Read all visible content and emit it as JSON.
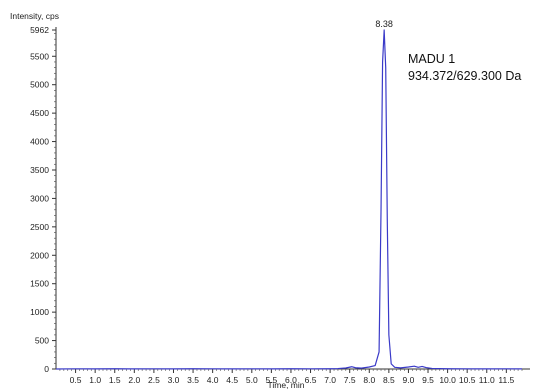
{
  "chart_data": {
    "type": "line",
    "ylabel": "Intensity, cps",
    "xlabel": "Time, min",
    "xlim": [
      0,
      11.9
    ],
    "ylim": [
      0,
      5962
    ],
    "x_ticks": [
      0.5,
      1.0,
      1.5,
      2.0,
      2.5,
      3.0,
      3.5,
      4.0,
      4.5,
      5.0,
      5.5,
      6.0,
      6.5,
      7.0,
      7.5,
      8.0,
      8.5,
      9.0,
      9.5,
      10.0,
      10.5,
      11.0,
      11.5
    ],
    "x_tick_labels": [
      "0.5",
      "1.0",
      "1.5",
      "2.0",
      "2.5",
      "3.0",
      "3.5",
      "4.0",
      "4.5",
      "5.0",
      "5.5",
      "6.0",
      "6.5",
      "7.0",
      "7.5",
      "8.0",
      "8.5",
      "9.0",
      "9.5",
      "10.0",
      "10.5",
      "11.0",
      "11.5"
    ],
    "y_ticks": [
      0,
      500,
      1000,
      1500,
      2000,
      2500,
      3000,
      3500,
      4000,
      4500,
      5000,
      5500,
      5962
    ],
    "y_tick_labels": [
      "0",
      "500",
      "1000",
      "1500",
      "2000",
      "2500",
      "3000",
      "3500",
      "4000",
      "4500",
      "5000",
      "5500",
      "5962"
    ],
    "series": [
      {
        "x": [
          0.0,
          0.5,
          1.0,
          1.5,
          2.0,
          2.5,
          3.0,
          3.5,
          4.0,
          4.5,
          5.0,
          5.5,
          6.0,
          6.5,
          7.0,
          7.2,
          7.4,
          7.55,
          7.65,
          7.8,
          8.0,
          8.15,
          8.25,
          8.3,
          8.34,
          8.38,
          8.42,
          8.46,
          8.5,
          8.56,
          8.65,
          8.8,
          9.0,
          9.15,
          9.25,
          9.35,
          9.45,
          9.6,
          10.0,
          10.5,
          11.0,
          11.5,
          11.9
        ],
        "y": [
          0,
          3,
          2,
          4,
          2,
          3,
          2,
          4,
          3,
          2,
          3,
          2,
          4,
          3,
          5,
          8,
          18,
          40,
          22,
          15,
          35,
          60,
          300,
          2800,
          5400,
          5962,
          5300,
          2600,
          600,
          90,
          30,
          20,
          35,
          50,
          30,
          45,
          25,
          10,
          5,
          3,
          2,
          3,
          2
        ],
        "color": "#3a3ac8"
      }
    ],
    "annotations": [
      {
        "text": "8.38",
        "x": 8.38,
        "y": 5962
      }
    ],
    "legend_text": [
      "MADU 1",
      "934.372/629.300 Da"
    ],
    "grid": false
  }
}
